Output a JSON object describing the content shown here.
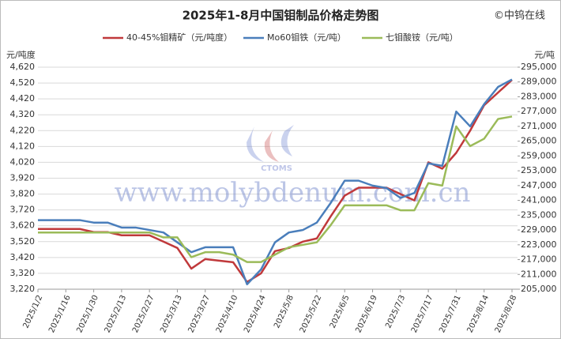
{
  "chart_data": {
    "type": "line",
    "title": "2025年1-8月中国钼制品价格走势图",
    "source": "©中钨在线",
    "watermark": "www.molybdenum.com.cn",
    "logo_text": "CTOMS",
    "y_label": "元/吨度",
    "y2_label": "元/吨",
    "categories": [
      "2025/1/2",
      null,
      "2025/1/16",
      null,
      "2025/1/30",
      null,
      "2025/2/13",
      null,
      "2025/2/27",
      null,
      "2025/3/13",
      null,
      "2025/3/27",
      null,
      "2025/4/10",
      null,
      "2025/4/24",
      null,
      "2025/5/8",
      null,
      "2025/5/22",
      null,
      "2025/6/5",
      null,
      "2025/6/19",
      null,
      "2025/7/3",
      null,
      "2025/7/17",
      null,
      "2025/7/31",
      null,
      "2025/8/14",
      null,
      "2025/8/28"
    ],
    "ylim": [
      3220,
      4620
    ],
    "yticks": [
      {
        "value": 3220,
        "label": "3,220"
      },
      {
        "value": 3320,
        "label": "3,320"
      },
      {
        "value": 3420,
        "label": "3,420"
      },
      {
        "value": 3520,
        "label": "3,520"
      },
      {
        "value": 3620,
        "label": "3,620"
      },
      {
        "value": 3720,
        "label": "3,720"
      },
      {
        "value": 3820,
        "label": "3,820"
      },
      {
        "value": 3920,
        "label": "3,920"
      },
      {
        "value": 4020,
        "label": "4,020"
      },
      {
        "value": 4120,
        "label": "4,120"
      },
      {
        "value": 4220,
        "label": "4,220"
      },
      {
        "value": 4320,
        "label": "4,320"
      },
      {
        "value": 4420,
        "label": "4,420"
      },
      {
        "value": 4520,
        "label": "4,520"
      },
      {
        "value": 4620,
        "label": "4,620"
      }
    ],
    "y2lim": [
      205000,
      295000
    ],
    "y2ticks": [
      {
        "value": 205000,
        "label": "205,000"
      },
      {
        "value": 211000,
        "label": "211,000"
      },
      {
        "value": 217000,
        "label": "217,000"
      },
      {
        "value": 223000,
        "label": "223,000"
      },
      {
        "value": 229000,
        "label": "229,000"
      },
      {
        "value": 235000,
        "label": "235,000"
      },
      {
        "value": 241000,
        "label": "241,000"
      },
      {
        "value": 247000,
        "label": "247,000"
      },
      {
        "value": 253000,
        "label": "253,000"
      },
      {
        "value": 259000,
        "label": "259,000"
      },
      {
        "value": 265000,
        "label": "265,000"
      },
      {
        "value": 271000,
        "label": "271,000"
      },
      {
        "value": 277000,
        "label": "277,000"
      },
      {
        "value": 283000,
        "label": "283,000"
      },
      {
        "value": 289000,
        "label": "289,000"
      },
      {
        "value": 295000,
        "label": "295,000"
      }
    ],
    "grid": true,
    "series": [
      {
        "name": "40-45%钼精矿（元/吨度）",
        "color": "#c0393b",
        "values": [
          3600,
          3600,
          3600,
          3600,
          3580,
          3580,
          3560,
          3560,
          3560,
          3520,
          3480,
          3350,
          3410,
          3400,
          3390,
          3265,
          3320,
          3460,
          3480,
          3520,
          3540,
          3680,
          3810,
          3860,
          3860,
          3860,
          3820,
          3780,
          4020,
          3980,
          4080,
          4220,
          4380,
          4460,
          4540
        ]
      },
      {
        "name": "Mo60钼铁（元/吨）",
        "color": "#4a7ebb",
        "axis": "y2",
        "values": [
          233000,
          233000,
          233000,
          233000,
          232000,
          232000,
          230000,
          230000,
          229000,
          228000,
          224000,
          220000,
          222000,
          222000,
          222000,
          207000,
          213000,
          224000,
          228000,
          229000,
          232000,
          240000,
          249000,
          249000,
          247000,
          246000,
          242000,
          244000,
          256000,
          255000,
          277000,
          271000,
          280000,
          287000,
          290000
        ]
      },
      {
        "name": "七钼酸铵（元/吨）",
        "color": "#9bbb59",
        "axis": "y2",
        "values": [
          228000,
          228000,
          228000,
          228000,
          228000,
          228000,
          228000,
          228000,
          228000,
          226000,
          226000,
          218000,
          220000,
          220000,
          219000,
          216000,
          216000,
          219000,
          222000,
          223000,
          224000,
          231000,
          239000,
          239000,
          239000,
          239000,
          237000,
          237000,
          248000,
          247000,
          271000,
          263000,
          266000,
          274000,
          275000
        ]
      }
    ]
  }
}
